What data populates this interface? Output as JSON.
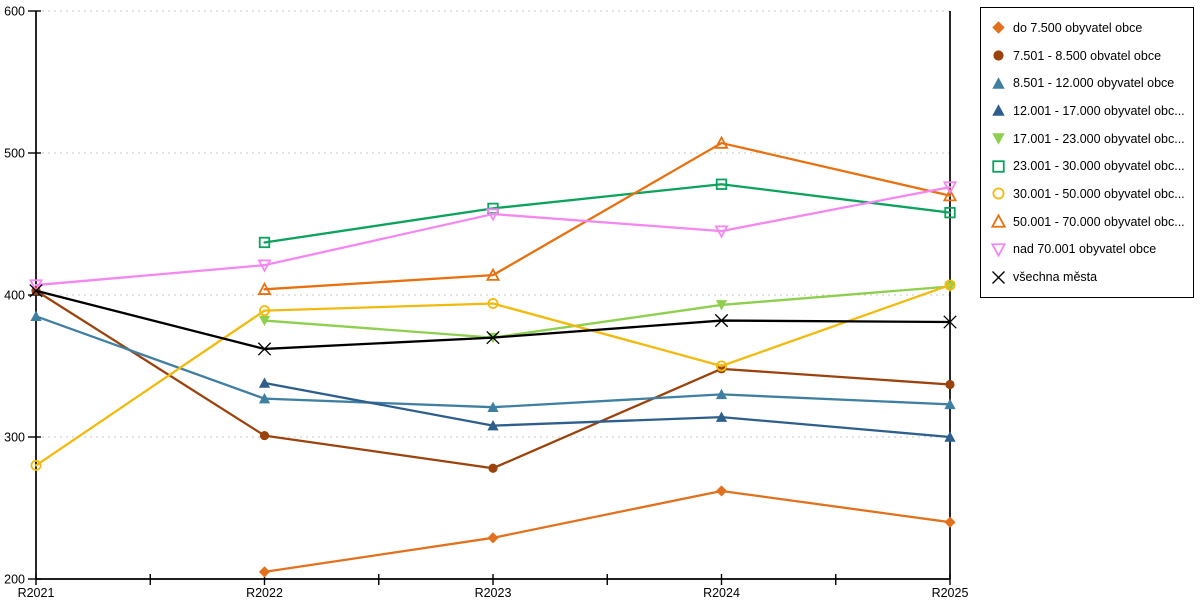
{
  "chart_data": {
    "type": "line",
    "title": "",
    "xlabel": "",
    "ylabel": "",
    "categories": [
      "R2021",
      "R2022",
      "R2023",
      "R2024",
      "R2025"
    ],
    "ylim": [
      200,
      600
    ],
    "yticks": [
      200,
      300,
      400,
      500,
      600
    ],
    "grid": "horizontal dotted gridlines at 300-600",
    "legend_position": "outside-top-right",
    "axis_color": "#000000",
    "gridline_color": "#c6c6c6",
    "series": [
      {
        "name": "do 7.500 obyvatel obce",
        "marker": "diamond",
        "marker_fill": "solid",
        "color": "#e2711d",
        "values": [
          null,
          205,
          229,
          262,
          240
        ]
      },
      {
        "name": "7.501 - 8.500 obvatel obce",
        "marker": "circle",
        "marker_fill": "solid",
        "color": "#9c430d",
        "values": [
          403,
          301,
          278,
          348,
          337
        ]
      },
      {
        "name": "8.501 - 12.000 obyvatel obce",
        "marker": "triangle-up",
        "marker_fill": "solid",
        "color": "#3f7fa2",
        "values": [
          385,
          327,
          321,
          330,
          323
        ]
      },
      {
        "name": "12.001 - 17.000 obyvatel obc...",
        "marker": "triangle-up",
        "marker_fill": "solid",
        "color": "#2e5f8c",
        "values": [
          null,
          338,
          308,
          314,
          300
        ]
      },
      {
        "name": "17.001 - 23.000 obyvatel obc...",
        "marker": "triangle-down",
        "marker_fill": "solid",
        "color": "#8ecf4d",
        "values": [
          null,
          382,
          370,
          393,
          406
        ]
      },
      {
        "name": "23.001 - 30.000 obyvatel obc...",
        "marker": "square",
        "marker_fill": "outline",
        "color": "#0ba25e",
        "values": [
          null,
          437,
          461,
          478,
          458
        ]
      },
      {
        "name": "30.001 - 50.000 obyvatel obc...",
        "marker": "circle",
        "marker_fill": "outline",
        "color": "#f2ba0e",
        "values": [
          280,
          389,
          394,
          350,
          407
        ]
      },
      {
        "name": "50.001 - 70.000 obyvatel obc...",
        "marker": "triangle-up",
        "marker_fill": "outline",
        "color": "#e8700f",
        "values": [
          null,
          404,
          414,
          507,
          470
        ]
      },
      {
        "name": "nad 70.001 obyvatel obce",
        "marker": "triangle-down",
        "marker_fill": "outline",
        "color": "#f487f0",
        "values": [
          407,
          421,
          457,
          445,
          476
        ]
      },
      {
        "name": "všechna města",
        "marker": "x",
        "marker_fill": "line",
        "color": "#000000",
        "values": [
          403,
          362,
          370,
          382,
          381
        ]
      }
    ]
  }
}
